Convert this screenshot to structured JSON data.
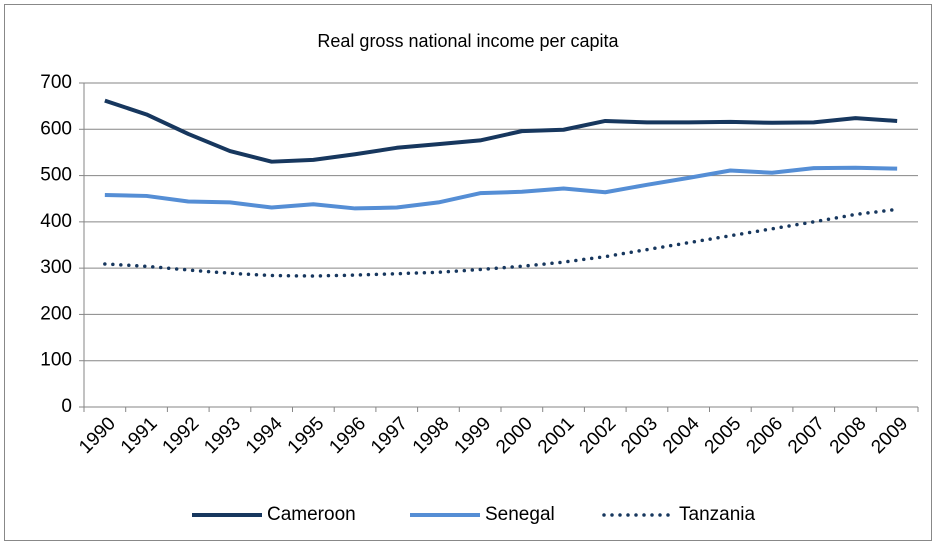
{
  "chart_data": {
    "type": "line",
    "title": "Real gross national income per capita",
    "categories": [
      "1990",
      "1991",
      "1992",
      "1993",
      "1994",
      "1995",
      "1996",
      "1997",
      "1998",
      "1999",
      "2000",
      "2001",
      "2002",
      "2003",
      "2004",
      "2005",
      "2006",
      "2007",
      "2008",
      "2009"
    ],
    "series": [
      {
        "name": "Cameroon",
        "color": "#17375e",
        "style": "solid",
        "values": [
          662,
          632,
          590,
          553,
          530,
          534,
          546,
          560,
          568,
          576,
          596,
          599,
          618,
          615,
          615,
          616,
          614,
          615,
          624,
          618
        ]
      },
      {
        "name": "Senegal",
        "color": "#558ed5",
        "style": "solid",
        "values": [
          458,
          456,
          444,
          442,
          431,
          438,
          429,
          431,
          442,
          462,
          465,
          472,
          464,
          480,
          495,
          511,
          506,
          516,
          517,
          515
        ]
      },
      {
        "name": "Tanzania",
        "color": "#17375e",
        "style": "dotted",
        "values": [
          309,
          304,
          296,
          289,
          284,
          283,
          285,
          288,
          291,
          297,
          304,
          313,
          325,
          340,
          355,
          370,
          385,
          400,
          416,
          427
        ]
      }
    ],
    "ylim": [
      0,
      700
    ],
    "yticks": [
      0,
      100,
      200,
      300,
      400,
      500,
      600,
      700
    ],
    "grid": true,
    "legend": "bottom"
  }
}
